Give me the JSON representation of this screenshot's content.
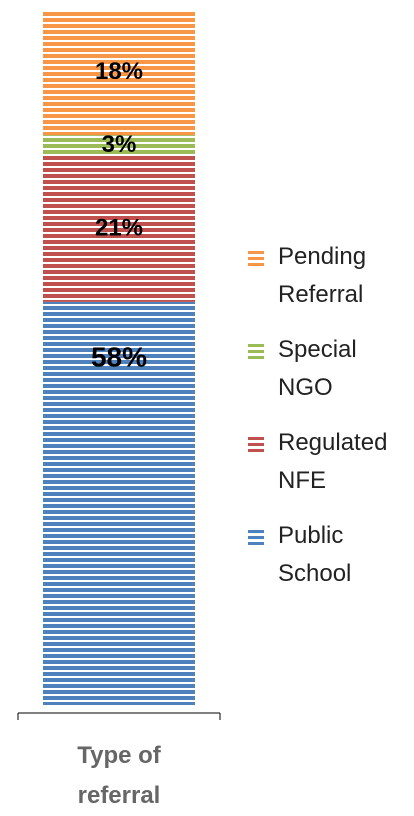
{
  "chart_data": {
    "type": "bar",
    "stacked": true,
    "categories": [
      "Type of referral"
    ],
    "series": [
      {
        "name": "Public School",
        "color": "#4f81bd",
        "values": [
          58
        ],
        "value_labels": [
          "58%"
        ]
      },
      {
        "name": "Regulated NFE",
        "color": "#c0504d",
        "values": [
          21
        ],
        "value_labels": [
          "21%"
        ]
      },
      {
        "name": "Special NGO",
        "color": "#9bbb59",
        "values": [
          3
        ],
        "value_labels": [
          "3%"
        ]
      },
      {
        "name": "Pending Referral",
        "color": "#f79646",
        "values": [
          18
        ],
        "value_labels": [
          "18%"
        ]
      }
    ],
    "legend": "right"
  }
}
